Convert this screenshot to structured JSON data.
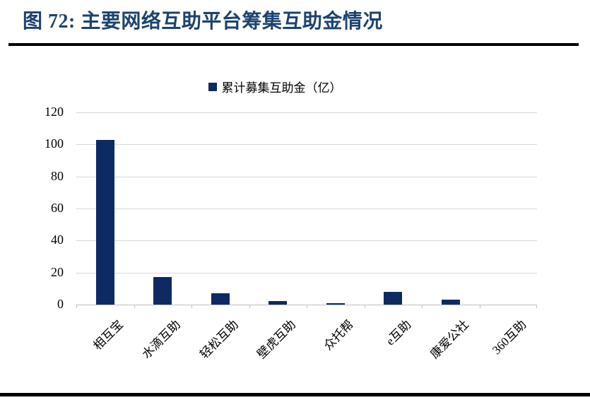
{
  "figure": {
    "title": "图 72:  主要网络互助平台筹集互助金情况"
  },
  "chart_data": {
    "type": "bar",
    "title": "图 72: 主要网络互助平台筹集互助金情况",
    "legend": [
      "累计募集互助金（亿）"
    ],
    "legend_position": "top",
    "categories": [
      "相互宝",
      "水滴互助",
      "轻松互助",
      "壁虎互助",
      "众托帮",
      "e互助",
      "康爱公社",
      "360互助"
    ],
    "values": [
      103,
      17,
      7,
      2,
      1,
      8,
      3,
      0
    ],
    "xlabel": "",
    "ylabel": "",
    "ylim": [
      0,
      120
    ],
    "yticks": [
      0,
      20,
      40,
      60,
      80,
      100,
      120
    ],
    "grid": true,
    "bar_color": "#0e2a63"
  },
  "colors": {
    "title": "#1c4370",
    "bar": "#0e2a63",
    "gridline": "#d9d9d9",
    "axis": "#c0c0c0",
    "rule": "#000000"
  }
}
